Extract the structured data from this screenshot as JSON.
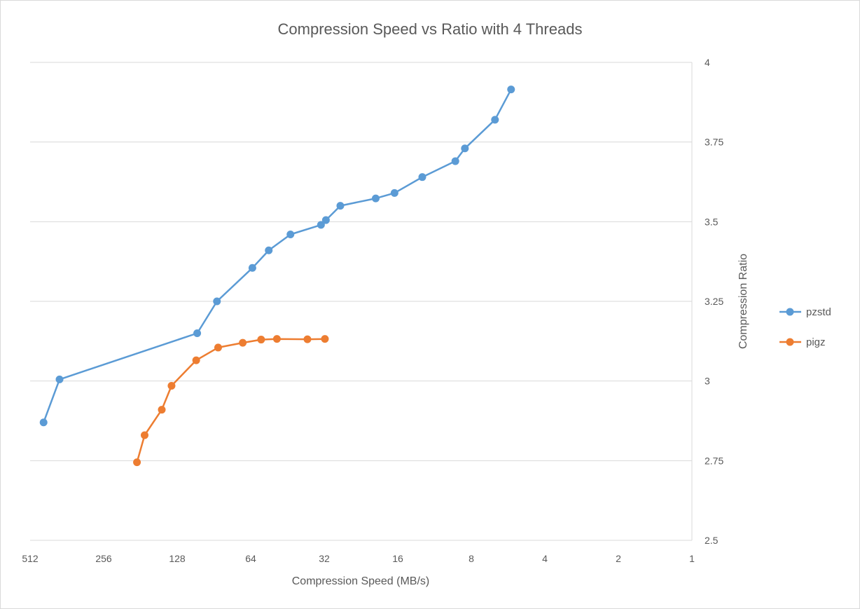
{
  "chart_data": {
    "type": "line",
    "title": "Compression  Speed vs Ratio with 4 Threads",
    "xlabel": "Compression Speed (MB/s)",
    "ylabel": "Compression Ratio",
    "x_scale": "log2",
    "x_reversed": true,
    "xlim": [
      512,
      1
    ],
    "ylim": [
      2.5,
      4
    ],
    "x_ticks": [
      "512",
      "256",
      "128",
      "64",
      "32",
      "16",
      "8",
      "4",
      "2",
      "1"
    ],
    "y_ticks": [
      "2.5",
      "2.75",
      "3",
      "3.25",
      "3.5",
      "3.75",
      "4"
    ],
    "y_axis_side": "right",
    "grid": "horizontal",
    "legend_position": "right",
    "colors": {
      "pzstd": "#5b9bd5",
      "pigz": "#ed7d31",
      "grid": "#d9d9d9",
      "text": "#595959"
    },
    "series": [
      {
        "name": "pzstd",
        "x": [
          451,
          388,
          106,
          88,
          63,
          54,
          44,
          33,
          31.5,
          27.5,
          19.7,
          16.5,
          12.7,
          9.3,
          8.5,
          6.4,
          5.5
        ],
        "y": [
          2.87,
          3.005,
          3.15,
          3.25,
          3.355,
          3.41,
          3.46,
          3.49,
          3.505,
          3.55,
          3.573,
          3.59,
          3.64,
          3.69,
          3.73,
          3.82,
          3.915
        ]
      },
      {
        "name": "pigz",
        "x": [
          187,
          174,
          148,
          135,
          107,
          87,
          69,
          58,
          50,
          37.5,
          31.8
        ],
        "y": [
          2.745,
          2.83,
          2.91,
          2.985,
          3.065,
          3.105,
          3.12,
          3.13,
          3.132,
          3.131,
          3.132
        ]
      }
    ]
  }
}
